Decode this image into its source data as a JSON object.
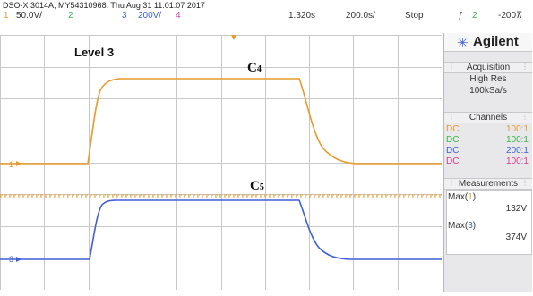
{
  "header": {
    "title": "DSO-X 3014A, MY54310968: Thu Aug 31 11:01:07 2017",
    "ch1_num": "1",
    "ch1_scale": "50.0V/",
    "ch2_num": "2",
    "ch3_num": "3",
    "ch3_scale": "200V/",
    "ch4_num": "4",
    "time_pos": "1.320s",
    "time_scale": "200.0s/",
    "run_state": "Stop",
    "trig_icon": "ƒ",
    "trig_src": "2",
    "trig_level": "-200⊼"
  },
  "plot": {
    "label_level": "Level 3",
    "label_c4_main": "C",
    "label_c4_sub": "4",
    "label_c5_main": "C",
    "label_c5_sub": "5",
    "ch1_marker": "1",
    "ch3_marker": "3"
  },
  "panel": {
    "brand_name": "Agilent",
    "brand_icon": "starburst-logo",
    "acquisition": {
      "title": "Acquisition",
      "mode": "High Res",
      "rate": "100kSa/s"
    },
    "channels": {
      "title": "Channels",
      "rows": [
        {
          "coupling": "DC",
          "probe": "100:1",
          "color": "#e89a2c"
        },
        {
          "coupling": "DC",
          "probe": "100:1",
          "color": "#3ab54a"
        },
        {
          "coupling": "DC",
          "probe": "200:1",
          "color": "#3f5fd8"
        },
        {
          "coupling": "DC",
          "probe": "100:1",
          "color": "#d83a8c"
        }
      ]
    },
    "measurements": {
      "title": "Measurements",
      "items": [
        {
          "label": "Max(",
          "channel": "1",
          "close": "):",
          "value": "132V"
        },
        {
          "label": "Max(",
          "channel": "3",
          "close": "):",
          "value": "374V"
        }
      ]
    }
  },
  "colors": {
    "ch1": "#e89a2c",
    "ch2": "#3ab54a",
    "ch3": "#3f5fd8",
    "ch4": "#d83a8c"
  }
}
